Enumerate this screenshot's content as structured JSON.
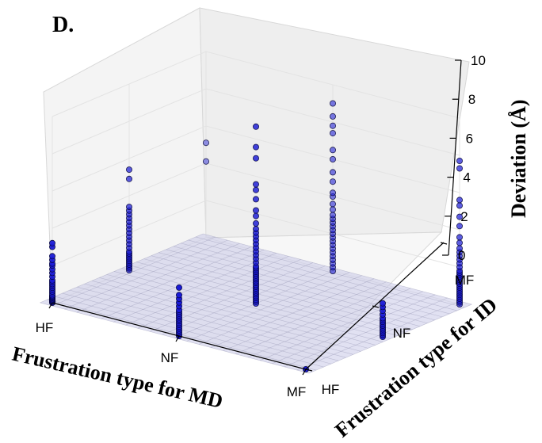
{
  "chart_data": {
    "type": "scatter",
    "panel_label": "D.",
    "title": "",
    "xlabel": "Frustration type for MD",
    "ylabel": "Frustration type for ID",
    "zlabel": "Deviation (Å)",
    "x_categories": [
      "HF",
      "NF",
      "MF"
    ],
    "y_categories": [
      "HF",
      "NF",
      "MF"
    ],
    "zlim": [
      0,
      10
    ],
    "z_ticks": [
      "0",
      "2",
      "4",
      "6",
      "8",
      "10"
    ],
    "plane_z": 0,
    "marker_color": "#1a1ad6",
    "plane_color": "#c8c8e8",
    "grid": true,
    "points": [
      {
        "x": "HF",
        "y": "HF",
        "z": [
          0.0,
          0.05,
          0.1,
          0.15,
          0.2,
          0.25,
          0.3,
          0.35,
          0.4,
          0.5,
          0.6,
          0.7,
          0.8,
          0.9,
          1.0,
          1.1,
          1.2,
          1.4,
          1.6,
          1.8,
          2.0,
          2.1,
          2.3,
          2.5,
          3.0,
          3.2
        ]
      },
      {
        "x": "NF",
        "y": "HF",
        "z": [
          0.0,
          0.1,
          0.2,
          0.3,
          0.4,
          0.5,
          0.6,
          0.7,
          0.8,
          0.9,
          1.0,
          1.1,
          1.2,
          1.3,
          1.4,
          1.6,
          1.8,
          2.0,
          2.2,
          2.6
        ]
      },
      {
        "x": "MF",
        "y": "HF",
        "z": [
          0.0
        ]
      },
      {
        "x": "HF",
        "y": "NF",
        "z": [
          0.0,
          0.1,
          0.2,
          0.3,
          0.4,
          0.5,
          0.6,
          0.7,
          0.8,
          0.9,
          1.0,
          1.2,
          1.4,
          1.6,
          1.8,
          2.0,
          2.2,
          2.4,
          2.6,
          2.8,
          3.0,
          3.2,
          3.4,
          4.9,
          5.4
        ]
      },
      {
        "x": "NF",
        "y": "NF",
        "z": [
          0.0,
          0.1,
          0.2,
          0.3,
          0.4,
          0.5,
          0.6,
          0.7,
          0.8,
          0.9,
          1.0,
          1.1,
          1.2,
          1.3,
          1.4,
          1.5,
          1.6,
          1.7,
          1.8,
          1.9,
          2.0,
          2.2,
          2.4,
          2.6,
          2.8,
          3.0,
          3.2,
          3.4,
          3.6,
          3.8,
          4.0,
          4.3,
          4.7,
          5.0,
          5.6,
          6.1,
          6.4,
          7.8,
          8.4,
          9.5
        ]
      },
      {
        "x": "MF",
        "y": "NF",
        "z": [
          0.0,
          0.1,
          0.2,
          0.3,
          0.4,
          0.5,
          0.6,
          0.7,
          0.8,
          0.9,
          1.0,
          1.2,
          1.4,
          1.6,
          1.8
        ]
      },
      {
        "x": "HF",
        "y": "MF",
        "z": [
          4.1,
          5.1
        ]
      },
      {
        "x": "NF",
        "y": "MF",
        "z": [
          0.0,
          0.2,
          0.4,
          0.6,
          0.8,
          1.0,
          1.2,
          1.4,
          1.6,
          1.8,
          2.0,
          2.2,
          2.4,
          2.6,
          2.8,
          3.0,
          3.3,
          3.6,
          4.0,
          4.2,
          4.8,
          5.3,
          6.0,
          6.5,
          7.4,
          7.8,
          8.3,
          9.0
        ]
      },
      {
        "x": "MF",
        "y": "MF",
        "z": [
          0.0,
          0.1,
          0.2,
          0.3,
          0.4,
          0.5,
          0.6,
          0.7,
          0.8,
          0.9,
          1.0,
          1.1,
          1.2,
          1.3,
          1.4,
          1.5,
          1.6,
          1.7,
          1.8,
          2.0,
          2.2,
          2.4,
          2.6,
          2.8,
          3.0,
          3.3,
          3.6,
          4.2,
          4.7,
          5.3,
          5.6,
          7.3,
          7.7
        ]
      }
    ]
  }
}
